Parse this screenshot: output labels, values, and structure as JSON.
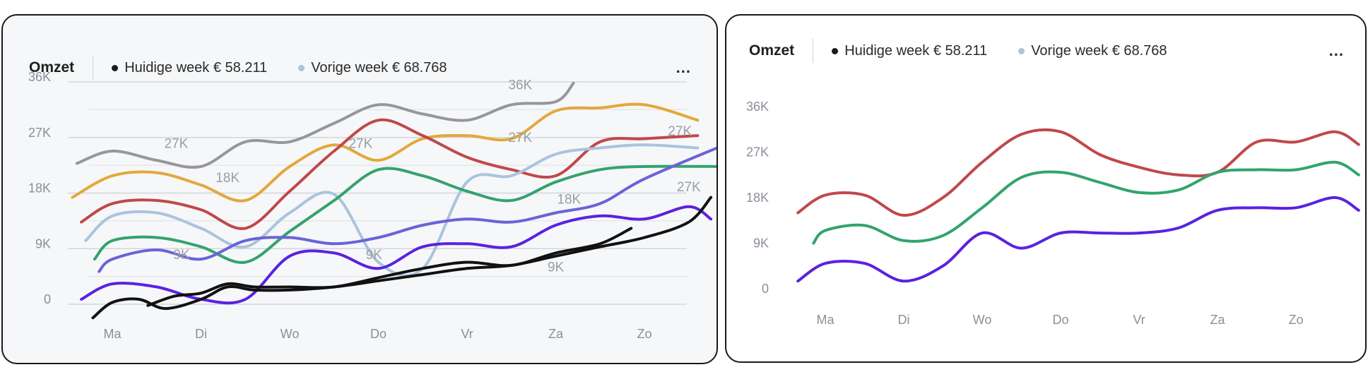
{
  "panels": [
    {
      "title": "Omzet",
      "legend": [
        {
          "label": "Huidige week € 58.211",
          "color": "#1a1a1a"
        },
        {
          "label": "Vorige week € 68.768",
          "color": "#a9c4de"
        }
      ],
      "more_label": "..."
    },
    {
      "title": "Omzet",
      "legend": [
        {
          "label": "Huidige week € 58.211",
          "color": "#1a1a1a"
        },
        {
          "label": "Vorige week € 68.768",
          "color": "#a9c4de"
        }
      ],
      "more_label": "..."
    }
  ],
  "chart_data": [
    {
      "type": "line",
      "categories": [
        "Ma",
        "Di",
        "Wo",
        "Do",
        "Vr",
        "Za",
        "Zo"
      ],
      "y_ticks": [
        "36K",
        "27K",
        "18K",
        "9K",
        "0"
      ],
      "ylim": [
        -2,
        36
      ],
      "grid": true,
      "series": [
        {
          "color": "#96969c",
          "x": [
            -0.4,
            0,
            0.5,
            1,
            1.5,
            2,
            2.5,
            3,
            3.5,
            4,
            4.5,
            5,
            5.2
          ],
          "values": [
            22,
            24,
            22.5,
            21.5,
            25.5,
            25.5,
            28.5,
            31.5,
            30,
            29,
            31.5,
            32,
            35
          ]
        },
        {
          "color": "#e3a83a",
          "x": [
            -0.45,
            0,
            0.5,
            1,
            1.5,
            2,
            2.5,
            3,
            3.5,
            4,
            4.5,
            5,
            5.5,
            6,
            6.6
          ],
          "values": [
            16.5,
            20,
            20.5,
            18.5,
            16,
            21.5,
            25,
            22.5,
            26,
            26.5,
            26,
            30.5,
            31,
            31.5,
            29
          ]
        },
        {
          "color": "#c0484a",
          "x": [
            -0.35,
            0,
            0.5,
            1,
            1.5,
            2,
            2.5,
            3,
            3.5,
            4,
            4.5,
            5,
            5.5,
            6,
            6.6
          ],
          "values": [
            12.5,
            15.5,
            16,
            14.5,
            11.5,
            17.5,
            24,
            29,
            26.5,
            23,
            21,
            20,
            25.5,
            26,
            26.5
          ]
        },
        {
          "color": "#a9c4de",
          "x": [
            -0.3,
            0,
            0.5,
            1,
            1.5,
            2,
            2.5,
            3,
            3.5,
            4,
            4.5,
            5,
            5.5,
            6,
            6.6
          ],
          "values": [
            9.5,
            13.5,
            14,
            11.5,
            8.5,
            14,
            17,
            6,
            5,
            19,
            20,
            23.5,
            24.5,
            25,
            24.5
          ]
        },
        {
          "color": "#33a36d",
          "x": [
            -0.2,
            0,
            0.5,
            1,
            1.5,
            2,
            2.5,
            3,
            3.5,
            4,
            4.5,
            5,
            5.5,
            6,
            6.9
          ],
          "values": [
            6.5,
            9.5,
            10,
            8.5,
            6,
            11,
            16,
            21,
            20,
            17.5,
            16,
            19,
            21,
            21.5,
            21.5
          ]
        },
        {
          "color": "#6a63d8",
          "x": [
            -0.15,
            0,
            0.5,
            1,
            1.5,
            2,
            2.5,
            3,
            3.5,
            4,
            4.5,
            5,
            5.5,
            6,
            6.9
          ],
          "values": [
            4.5,
            6.5,
            8,
            6.5,
            9.5,
            10,
            9,
            10,
            12,
            13,
            12.5,
            14,
            15.5,
            19.5,
            25
          ]
        },
        {
          "color": "#5a22e0",
          "x": [
            -0.35,
            0,
            0.5,
            1,
            1.5,
            2,
            2.5,
            3,
            3.5,
            4,
            4.5,
            5,
            5.5,
            6,
            6.5,
            6.75
          ],
          "values": [
            0,
            2.5,
            2,
            0,
            0,
            7,
            7.5,
            5,
            8.5,
            9,
            8.5,
            12,
            13.5,
            13,
            15,
            13
          ]
        },
        {
          "color": "#111111",
          "x": [
            -0.22,
            0,
            0.3,
            0.6,
            1,
            1.3,
            1.6,
            2,
            2.5,
            3,
            3.5,
            4,
            4.5,
            5,
            5.5,
            6,
            6.5,
            6.75
          ],
          "values": [
            -3,
            -0.5,
            0,
            -1.5,
            0,
            2,
            1.5,
            1.5,
            2,
            3,
            4,
            5,
            5.5,
            7,
            8.5,
            10,
            12.5,
            16.5
          ]
        },
        {
          "color": "#111111",
          "x": [
            0.4,
            0.7,
            1,
            1.3,
            1.6,
            2,
            2.5,
            3,
            3.5,
            4,
            4.5,
            5,
            5.5,
            5.85
          ],
          "values": [
            -1,
            0.5,
            1,
            2.5,
            2,
            2,
            2,
            3.5,
            5,
            6,
            5.5,
            7.5,
            9,
            11.5
          ]
        }
      ],
      "annotations": [
        {
          "text": "36K",
          "x": 4.6,
          "y": 34
        },
        {
          "text": "27K",
          "x": 0.72,
          "y": 24.5
        },
        {
          "text": "18K",
          "x": 1.3,
          "y": 19
        },
        {
          "text": "27K",
          "x": 2.8,
          "y": 24.5
        },
        {
          "text": "27K",
          "x": 4.6,
          "y": 25.5
        },
        {
          "text": "27K",
          "x": 6.4,
          "y": 26.5
        },
        {
          "text": "18K",
          "x": 5.15,
          "y": 15.5
        },
        {
          "text": "27K",
          "x": 6.5,
          "y": 17.5
        },
        {
          "text": "9K",
          "x": 0.78,
          "y": 6.5
        },
        {
          "text": "9K",
          "x": 2.95,
          "y": 6.5
        },
        {
          "text": "9K",
          "x": 5,
          "y": 4.5
        }
      ]
    },
    {
      "type": "line",
      "categories": [
        "Ma",
        "Di",
        "Wo",
        "Do",
        "Vr",
        "Za",
        "Zo"
      ],
      "y_ticks": [
        "36K",
        "27K",
        "18K",
        "9K",
        "0"
      ],
      "ylim": [
        0,
        36
      ],
      "grid": false,
      "series": [
        {
          "color": "#c0484a",
          "x": [
            -0.35,
            0,
            0.5,
            1,
            1.5,
            2,
            2.5,
            3,
            3.5,
            4,
            4.5,
            5,
            5.5,
            6,
            6.5,
            6.8
          ],
          "values": [
            15,
            18.5,
            18.5,
            14.5,
            18,
            25,
            30.5,
            31,
            26.5,
            24,
            22.5,
            23,
            29,
            29,
            31,
            28.5
          ]
        },
        {
          "color": "#33a36d",
          "x": [
            -0.15,
            0,
            0.5,
            1,
            1.5,
            2,
            2.5,
            3,
            3.5,
            4,
            4.5,
            5,
            5.5,
            6,
            6.5,
            6.8
          ],
          "values": [
            9,
            11.5,
            12.5,
            9.5,
            10.5,
            16,
            22,
            23,
            21,
            19,
            19.5,
            23,
            23.5,
            23.5,
            25,
            22.5
          ]
        },
        {
          "color": "#5a22e0",
          "x": [
            -0.35,
            0,
            0.5,
            1,
            1.5,
            2,
            2.5,
            3,
            3.5,
            4,
            4.5,
            5,
            5.5,
            6,
            6.5,
            6.8
          ],
          "values": [
            1.5,
            5,
            5,
            1.5,
            4.5,
            11,
            8,
            11,
            11,
            11,
            12,
            15.5,
            16,
            16,
            18,
            15.5
          ]
        }
      ],
      "annotations": []
    }
  ]
}
